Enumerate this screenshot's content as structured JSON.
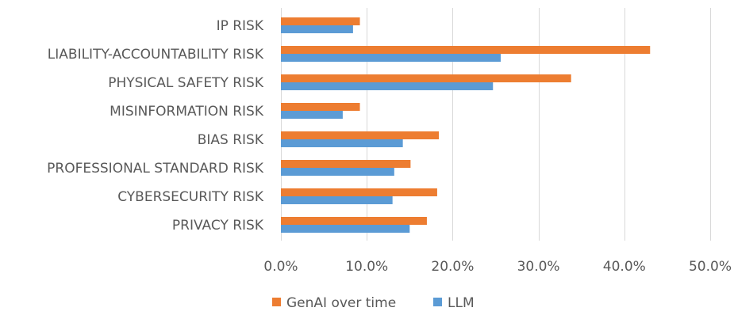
{
  "chart_data": {
    "type": "bar",
    "orientation": "horizontal",
    "categories": [
      "IP RISK",
      "LIABILITY-ACCOUNTABILITY RISK",
      "PHYSICAL SAFETY RISK",
      "MISINFORMATION RISK",
      "BIAS RISK",
      "PROFESSIONAL STANDARD RISK",
      "CYBERSECURITY RISK",
      "PRIVACY RISK"
    ],
    "series": [
      {
        "name": "GenAI over time",
        "color": "#ed7d31",
        "values": [
          9.2,
          43.0,
          33.8,
          9.2,
          18.4,
          15.1,
          18.2,
          17.0
        ]
      },
      {
        "name": "LLM",
        "color": "#5b9bd5",
        "values": [
          8.4,
          25.6,
          24.7,
          7.2,
          14.2,
          13.2,
          13.0,
          15.0
        ]
      }
    ],
    "xlim": [
      0,
      50
    ],
    "xticks": [
      "0.0%",
      "10.0%",
      "20.0%",
      "30.0%",
      "40.0%",
      "50.0%"
    ],
    "xtick_values": [
      0,
      10,
      20,
      30,
      40,
      50
    ],
    "grid": true,
    "legend_position": "bottom"
  }
}
